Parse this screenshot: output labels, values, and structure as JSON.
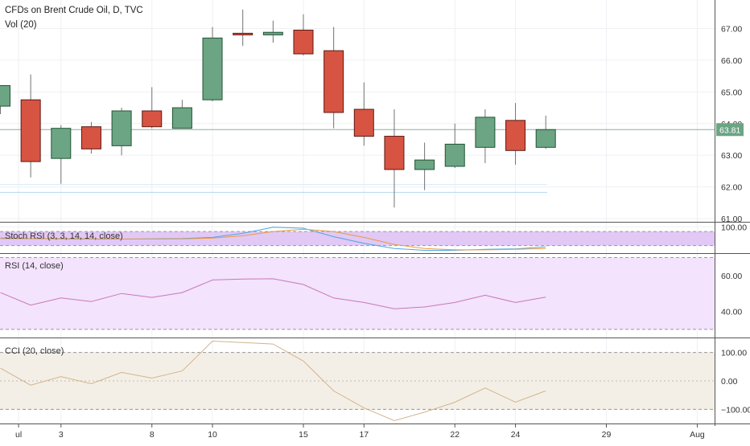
{
  "header": {
    "title": "CFDs on Brent Crude Oil, D, TVC",
    "volume_label": "Vol (20)"
  },
  "colors": {
    "up_fill": "#6ba583",
    "up_border": "#225437",
    "down_fill": "#d75442",
    "down_border": "#5b1a13",
    "wick": "#737375",
    "price_label_bg": "#6ba583",
    "stoch_band": "#e1c8f5",
    "rsi_band": "#f3e3fd",
    "cci_band": "#f4efe6",
    "rsi_line": "#c878b4",
    "cci_line": "#d2b48c",
    "stoch_k": "#4aa7e6",
    "stoch_d": "#e89b3d",
    "grid": "#eef0f3",
    "axis_line": "#555555"
  },
  "chart_data": [
    {
      "name": "price",
      "type": "candlestick",
      "title": "CFDs on Brent Crude Oil, D, TVC",
      "ylim": [
        60.9,
        67.9
      ],
      "y_ticks": [
        "67.00",
        "66.00",
        "65.00",
        "64.00",
        "63.00",
        "62.00",
        "61.00"
      ],
      "y_tick_values": [
        67,
        66,
        65,
        64,
        63,
        62,
        61
      ],
      "last_price": "63.81",
      "last_price_value": 63.81,
      "x_ticks": [
        {
          "label": "ul",
          "index": 0.6
        },
        {
          "label": "3",
          "index": 2
        },
        {
          "label": "8",
          "index": 5
        },
        {
          "label": "10",
          "index": 7
        },
        {
          "label": "15",
          "index": 10
        },
        {
          "label": "17",
          "index": 12
        },
        {
          "label": "22",
          "index": 15
        },
        {
          "label": "24",
          "index": 17
        },
        {
          "label": "29",
          "index": 20
        },
        {
          "label": "Aug",
          "index": 23
        }
      ],
      "candles": [
        {
          "date": "Jun 28",
          "open": 64.55,
          "high": 65.2,
          "low": 64.3,
          "close": 65.2
        },
        {
          "date": "Jul 1",
          "open": 64.75,
          "high": 65.55,
          "low": 62.3,
          "close": 62.8
        },
        {
          "date": "Jul 2",
          "open": 62.9,
          "high": 63.95,
          "low": 62.1,
          "close": 63.85
        },
        {
          "date": "Jul 3",
          "open": 63.9,
          "high": 64.05,
          "low": 63.05,
          "close": 63.2
        },
        {
          "date": "Jul 5",
          "open": 63.3,
          "high": 64.5,
          "low": 63.0,
          "close": 64.4
        },
        {
          "date": "Jul 8",
          "open": 64.4,
          "high": 65.15,
          "low": 63.85,
          "close": 63.9
        },
        {
          "date": "Jul 9",
          "open": 63.85,
          "high": 64.75,
          "low": 63.85,
          "close": 64.5
        },
        {
          "date": "Jul 10",
          "open": 64.75,
          "high": 67.05,
          "low": 64.7,
          "close": 66.7
        },
        {
          "date": "Jul 11",
          "open": 66.85,
          "high": 67.6,
          "low": 66.45,
          "close": 66.8
        },
        {
          "date": "Jul 12",
          "open": 66.8,
          "high": 67.25,
          "low": 66.55,
          "close": 66.88
        },
        {
          "date": "Jul 15",
          "open": 66.95,
          "high": 67.45,
          "low": 66.15,
          "close": 66.2
        },
        {
          "date": "Jul 16",
          "open": 66.3,
          "high": 67.05,
          "low": 63.85,
          "close": 64.35
        },
        {
          "date": "Jul 17",
          "open": 64.45,
          "high": 65.3,
          "low": 63.3,
          "close": 63.6
        },
        {
          "date": "Jul 18",
          "open": 63.6,
          "high": 64.45,
          "low": 61.35,
          "close": 62.55
        },
        {
          "date": "Jul 19",
          "open": 62.55,
          "high": 63.4,
          "low": 61.9,
          "close": 62.85
        },
        {
          "date": "Jul 22",
          "open": 62.65,
          "high": 64.0,
          "low": 62.6,
          "close": 63.35
        },
        {
          "date": "Jul 23",
          "open": 63.25,
          "high": 64.45,
          "low": 62.75,
          "close": 64.2
        },
        {
          "date": "Jul 24",
          "open": 64.1,
          "high": 64.65,
          "low": 62.7,
          "close": 63.15
        },
        {
          "date": "Jul 25",
          "open": 63.25,
          "high": 64.25,
          "low": 63.2,
          "close": 63.81
        }
      ]
    },
    {
      "name": "stoch_rsi",
      "type": "line",
      "title": "Stoch RSI (3, 3, 14, 14, close)",
      "ylim": [
        -12,
        118
      ],
      "band": [
        20,
        80
      ],
      "y_ticks": [
        "100.00"
      ],
      "y_tick_values": [
        100
      ],
      "series": [
        {
          "values": [
            52,
            50,
            49,
            48,
            48,
            49,
            50,
            55,
            72,
            98,
            94,
            58,
            30,
            8,
            0,
            0,
            4,
            6,
            15
          ]
        },
        {
          "values": [
            50,
            50,
            50,
            49,
            48,
            48,
            49,
            52,
            62,
            80,
            90,
            80,
            55,
            25,
            8,
            2,
            2,
            4,
            8
          ]
        }
      ]
    },
    {
      "name": "rsi",
      "type": "line",
      "title": "RSI (14, close)",
      "ylim": [
        25.5,
        72
      ],
      "band": [
        30,
        70
      ],
      "y_ticks": [
        "60.00",
        "40.00"
      ],
      "y_tick_values": [
        60,
        40
      ],
      "series": [
        {
          "values": [
            50.5,
            43.5,
            47.5,
            45.5,
            50,
            47.8,
            50.5,
            57.5,
            58,
            58.2,
            55,
            47.5,
            45,
            41.5,
            42.5,
            45,
            49,
            45,
            48
          ]
        }
      ]
    },
    {
      "name": "cci",
      "type": "line",
      "title": "CCI (20, close)",
      "ylim": [
        -150,
        150
      ],
      "band": [
        -100,
        100
      ],
      "y_ticks": [
        "100.00",
        "0.00",
        "−100.00"
      ],
      "y_tick_values": [
        100,
        0,
        -100
      ],
      "series": [
        {
          "values": [
            45,
            -15,
            15,
            -10,
            30,
            10,
            35,
            140,
            135,
            130,
            70,
            -35,
            -95,
            -140,
            -110,
            -75,
            -25,
            -75,
            -35
          ]
        }
      ]
    }
  ]
}
